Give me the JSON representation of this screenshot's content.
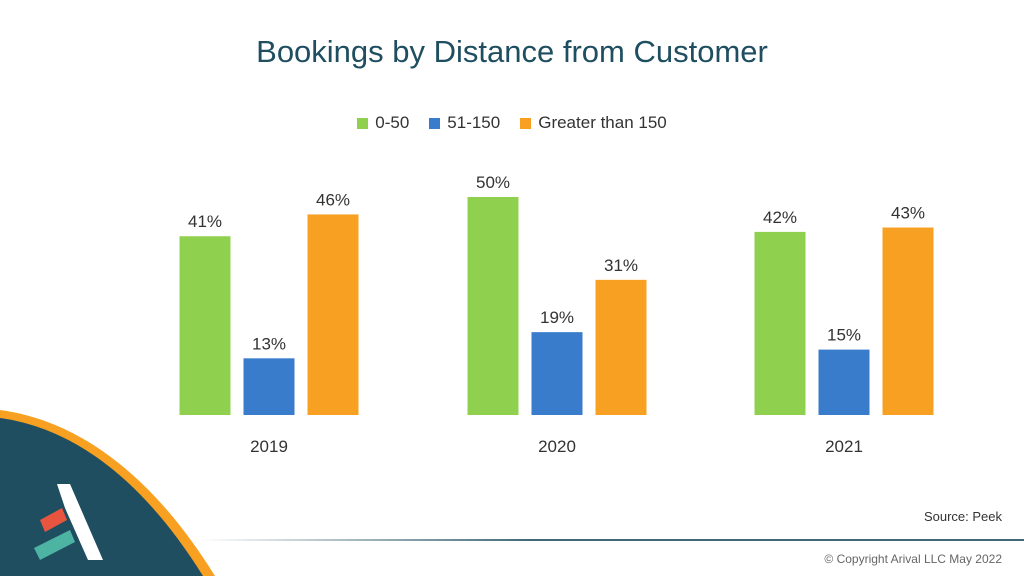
{
  "chart_data": {
    "type": "bar",
    "title": "Bookings by Distance from Customer",
    "categories": [
      "2019",
      "2020",
      "2021"
    ],
    "series": [
      {
        "name": "0-50",
        "color": "#8fd14f",
        "values": [
          41,
          50,
          42
        ]
      },
      {
        "name": "51-150",
        "color": "#3a7ccc",
        "values": [
          13,
          19,
          15
        ]
      },
      {
        "name": "Greater than 150",
        "color": "#f7a021",
        "values": [
          46,
          31,
          43
        ]
      }
    ],
    "value_suffix": "%",
    "ylim": [
      0,
      50
    ],
    "grid": false,
    "legend_position": "top"
  },
  "source": "Source: Peek",
  "copyright": "© Copyright Arival LLC May 2022",
  "logo": {
    "icon": "arival-logo-icon",
    "colors": [
      "#ffffff",
      "#e8553f",
      "#4db3a2"
    ]
  },
  "corner": {
    "colors": [
      "#1f4e60",
      "#f7a021"
    ]
  }
}
